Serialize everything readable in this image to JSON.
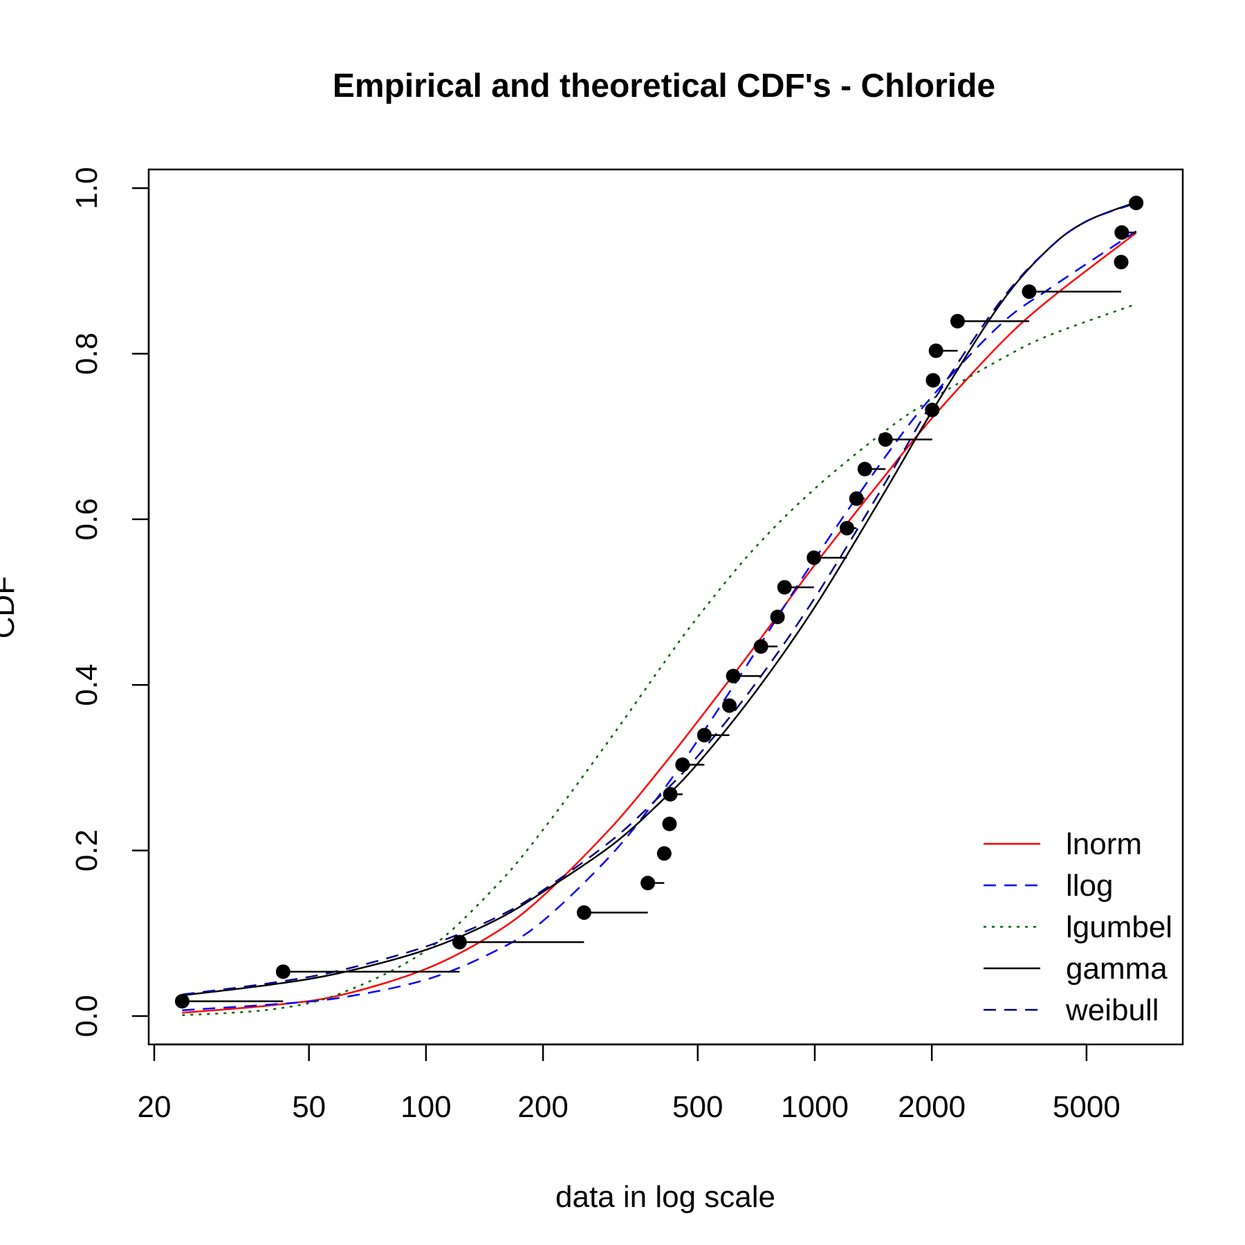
{
  "chart_data": {
    "type": "line",
    "title": "Empirical and theoretical CDF's - Chloride",
    "xlabel": "data in log scale",
    "ylabel": "CDF",
    "x_scale": "log",
    "xlim": [
      20,
      7000
    ],
    "ylim": [
      0.0,
      1.0
    ],
    "x_ticks": [
      {
        "value": 20,
        "label": "20"
      },
      {
        "value": 50,
        "label": "50"
      },
      {
        "value": 100,
        "label": "100"
      },
      {
        "value": 200,
        "label": "200"
      },
      {
        "value": 500,
        "label": "500"
      },
      {
        "value": 1000,
        "label": "1000"
      },
      {
        "value": 2000,
        "label": "2000"
      },
      {
        "value": 5000,
        "label": "5000"
      }
    ],
    "y_ticks": [
      {
        "value": 0.0,
        "label": "0.0"
      },
      {
        "value": 0.2,
        "label": "0.2"
      },
      {
        "value": 0.4,
        "label": "0.4"
      },
      {
        "value": 0.6,
        "label": "0.6"
      },
      {
        "value": 0.8,
        "label": "0.8"
      },
      {
        "value": 1.0,
        "label": "1.0"
      }
    ],
    "grid": false,
    "legend_position": "bottom-right",
    "empirical": [
      {
        "x": 23.6,
        "y": 0.0179
      },
      {
        "x": 42.9,
        "y": 0.0536
      },
      {
        "x": 122,
        "y": 0.0893
      },
      {
        "x": 255,
        "y": 0.125
      },
      {
        "x": 372,
        "y": 0.1607
      },
      {
        "x": 410,
        "y": 0.1964
      },
      {
        "x": 423,
        "y": 0.2321
      },
      {
        "x": 425,
        "y": 0.2679
      },
      {
        "x": 457,
        "y": 0.3036
      },
      {
        "x": 520,
        "y": 0.3393
      },
      {
        "x": 603,
        "y": 0.375
      },
      {
        "x": 617,
        "y": 0.4107
      },
      {
        "x": 727,
        "y": 0.4464
      },
      {
        "x": 802,
        "y": 0.4821
      },
      {
        "x": 836,
        "y": 0.5179
      },
      {
        "x": 995,
        "y": 0.5536
      },
      {
        "x": 1210,
        "y": 0.5893
      },
      {
        "x": 1280,
        "y": 0.625
      },
      {
        "x": 1345,
        "y": 0.6607
      },
      {
        "x": 1520,
        "y": 0.6964
      },
      {
        "x": 2005,
        "y": 0.7321
      },
      {
        "x": 2015,
        "y": 0.7679
      },
      {
        "x": 2050,
        "y": 0.8036
      },
      {
        "x": 2330,
        "y": 0.8393
      },
      {
        "x": 3560,
        "y": 0.875
      },
      {
        "x": 6140,
        "y": 0.9107
      },
      {
        "x": 6160,
        "y": 0.9464
      },
      {
        "x": 6710,
        "y": 0.9821
      }
    ],
    "series": [
      {
        "name": "lnorm",
        "color": "#ff0000",
        "dash": "solid",
        "x": [
          23.6,
          40,
          60,
          100,
          150,
          200,
          300,
          400,
          500,
          700,
          1000,
          1500,
          2000,
          3000,
          4000,
          6710
        ],
        "y": [
          0.004,
          0.013,
          0.025,
          0.057,
          0.1,
          0.145,
          0.228,
          0.298,
          0.356,
          0.446,
          0.545,
          0.65,
          0.722,
          0.812,
          0.865,
          0.946
        ]
      },
      {
        "name": "llog",
        "color": "#0000ff",
        "dash": "dashed",
        "x": [
          23.6,
          40,
          60,
          100,
          150,
          200,
          300,
          400,
          500,
          700,
          1000,
          1500,
          2000,
          3000,
          4000,
          6710
        ],
        "y": [
          0.007,
          0.014,
          0.022,
          0.044,
          0.078,
          0.115,
          0.195,
          0.268,
          0.333,
          0.438,
          0.552,
          0.672,
          0.748,
          0.835,
          0.878,
          0.948
        ]
      },
      {
        "name": "lgumbel",
        "color": "#006400",
        "dash": "dotted",
        "x": [
          23.6,
          40,
          60,
          100,
          150,
          200,
          300,
          400,
          500,
          700,
          1000,
          1500,
          2000,
          3000,
          4000,
          6710
        ],
        "y": [
          0.001,
          0.008,
          0.027,
          0.079,
          0.155,
          0.225,
          0.337,
          0.42,
          0.482,
          0.565,
          0.637,
          0.705,
          0.745,
          0.793,
          0.822,
          0.86
        ]
      },
      {
        "name": "gamma",
        "color": "#000000",
        "dash": "solid",
        "x": [
          23.6,
          40,
          60,
          100,
          150,
          200,
          300,
          400,
          500,
          700,
          1000,
          1500,
          2000,
          3000,
          4000,
          5000,
          6710
        ],
        "y": [
          0.025,
          0.038,
          0.052,
          0.08,
          0.115,
          0.15,
          0.206,
          0.258,
          0.305,
          0.39,
          0.494,
          0.63,
          0.73,
          0.86,
          0.927,
          0.96,
          0.983
        ]
      },
      {
        "name": "weibull",
        "color": "#00008b",
        "dash": "dashed",
        "x": [
          23.6,
          40,
          60,
          100,
          150,
          200,
          300,
          400,
          500,
          700,
          1000,
          1500,
          2000,
          3000,
          4000,
          5000,
          6710
        ],
        "y": [
          0.026,
          0.04,
          0.055,
          0.084,
          0.118,
          0.152,
          0.212,
          0.266,
          0.314,
          0.4,
          0.505,
          0.64,
          0.74,
          0.863,
          0.927,
          0.96,
          0.982
        ]
      }
    ]
  }
}
